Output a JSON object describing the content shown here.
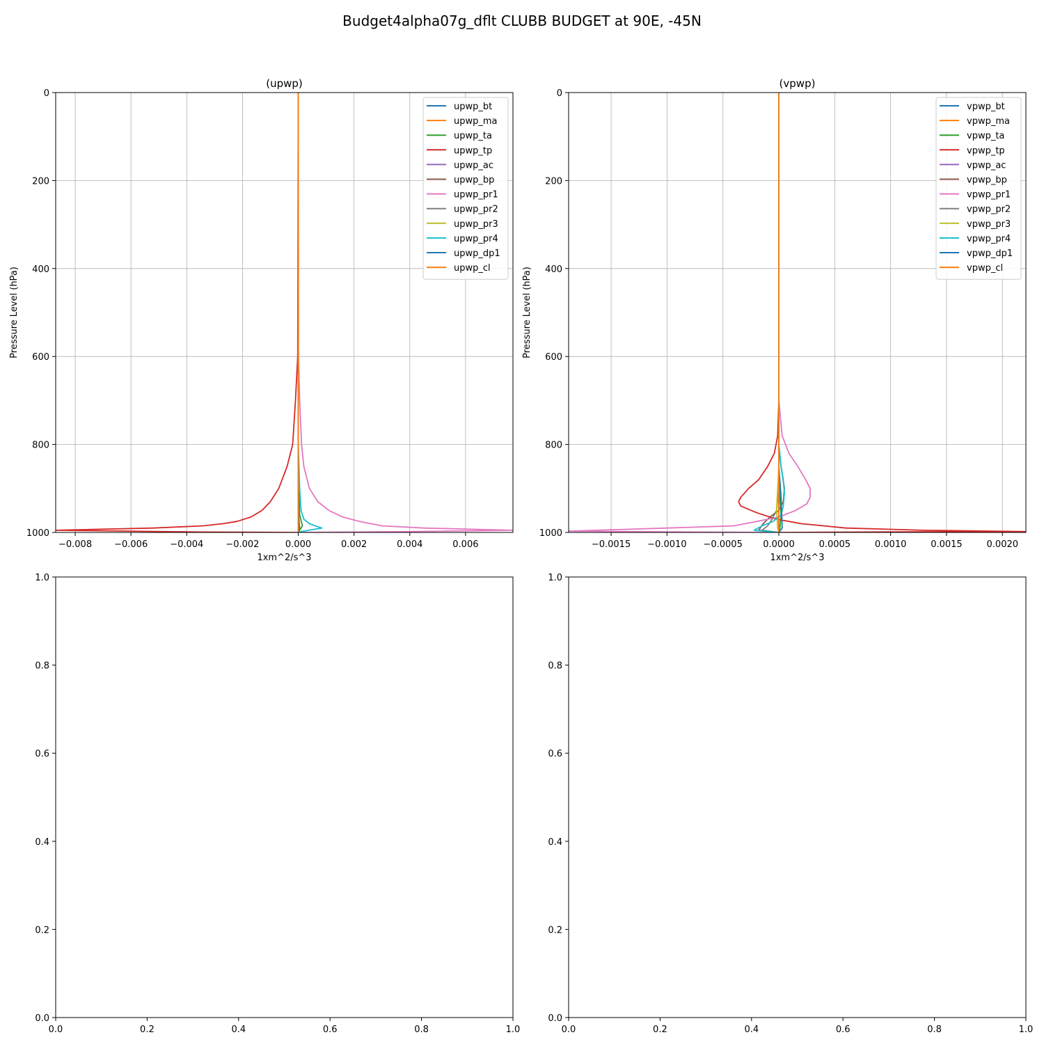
{
  "figure_title": "Budget4alpha07g_dflt CLUBB BUDGET at 90E, -45N",
  "chart_data": [
    {
      "type": "line",
      "title": "(upwp)",
      "xlabel": "1xm^2/s^3",
      "ylabel": "Pressure Level (hPa)",
      "xlim": [
        -0.0087,
        0.0077
      ],
      "ylim": [
        1000,
        0
      ],
      "y_inverted": true,
      "grid": true,
      "legend_position": "top-right",
      "xticks": [
        "−0.008",
        "−0.006",
        "−0.004",
        "−0.002",
        "0.000",
        "0.002",
        "0.004",
        "0.006"
      ],
      "xtick_values": [
        -0.008,
        -0.006,
        -0.004,
        -0.002,
        0,
        0.002,
        0.004,
        0.006
      ],
      "yticks": [
        "0",
        "200",
        "400",
        "600",
        "800",
        "1000"
      ],
      "ytick_values": [
        0,
        200,
        400,
        600,
        800,
        1000
      ],
      "series": [
        {
          "name": "upwp_bt",
          "color": "#1f77b4",
          "x": [
            0,
            0,
            0,
            0
          ],
          "y": [
            0,
            600,
            990,
            1000
          ]
        },
        {
          "name": "upwp_ma",
          "color": "#ff7f0e",
          "x": [
            0,
            0,
            0,
            0
          ],
          "y": [
            0,
            600,
            990,
            1000
          ]
        },
        {
          "name": "upwp_ta",
          "color": "#2ca02c",
          "x": [
            0,
            0,
            5e-05,
            0.00015,
            5e-05,
            0
          ],
          "y": [
            0,
            850,
            960,
            985,
            995,
            1000
          ]
        },
        {
          "name": "upwp_tp",
          "color": "#d62728",
          "x": [
            0,
            -2e-05,
            -0.0001,
            -0.0002,
            -0.0004,
            -0.0007,
            -0.001,
            -0.0013,
            -0.0017,
            -0.0022,
            -0.0027,
            -0.0034,
            -0.0052,
            -0.0087,
            -0.0035,
            0
          ],
          "y": [
            0,
            600,
            700,
            800,
            850,
            900,
            930,
            950,
            965,
            975,
            980,
            985,
            990,
            995,
            999,
            1000
          ]
        },
        {
          "name": "upwp_ac",
          "color": "#9467bd",
          "x": [
            0,
            0,
            0
          ],
          "y": [
            0,
            990,
            1000
          ]
        },
        {
          "name": "upwp_bp",
          "color": "#8c564b",
          "x": [
            0,
            0,
            5e-05,
            0
          ],
          "y": [
            0,
            950,
            990,
            1000
          ]
        },
        {
          "name": "upwp_pr1",
          "color": "#e377c2",
          "x": [
            0,
            1e-05,
            5e-05,
            0.00012,
            0.0002,
            0.0004,
            0.0007,
            0.0011,
            0.0016,
            0.0022,
            0.003,
            0.0045,
            0.0077,
            0.004,
            0
          ],
          "y": [
            0,
            600,
            700,
            800,
            850,
            900,
            930,
            950,
            965,
            975,
            985,
            990,
            995,
            998,
            1000
          ]
        },
        {
          "name": "upwp_pr2",
          "color": "#7f7f7f",
          "x": [
            0,
            0,
            0
          ],
          "y": [
            0,
            990,
            1000
          ]
        },
        {
          "name": "upwp_pr3",
          "color": "#bcbd22",
          "x": [
            0,
            0,
            0
          ],
          "y": [
            0,
            990,
            1000
          ]
        },
        {
          "name": "upwp_pr4",
          "color": "#17becf",
          "x": [
            0,
            0,
            5e-05,
            0.0001,
            0.0002,
            0.0004,
            0.0006,
            0.00085,
            0.0001,
            0
          ],
          "y": [
            0,
            800,
            900,
            950,
            970,
            980,
            985,
            990,
            998,
            1000
          ]
        },
        {
          "name": "upwp_dp1",
          "color": "#1f77b4",
          "x": [
            0,
            0,
            2e-05,
            0
          ],
          "y": [
            0,
            900,
            995,
            1000
          ]
        },
        {
          "name": "upwp_cl",
          "color": "#ff7f0e",
          "x": [
            0,
            0,
            0
          ],
          "y": [
            0,
            990,
            1000
          ]
        }
      ]
    },
    {
      "type": "line",
      "title": "(vpwp)",
      "xlabel": "1xm^2/s^3",
      "ylabel": "Pressure Level (hPa)",
      "xlim": [
        -0.00188,
        0.00221
      ],
      "ylim": [
        1000,
        0
      ],
      "y_inverted": true,
      "grid": true,
      "legend_position": "top-right",
      "xticks": [
        "−0.0015",
        "−0.0010",
        "−0.0005",
        "0.0000",
        "0.0005",
        "0.0010",
        "0.0015",
        "0.0020"
      ],
      "xtick_values": [
        -0.0015,
        -0.001,
        -0.0005,
        0,
        0.0005,
        0.001,
        0.0015,
        0.002
      ],
      "yticks": [
        "0",
        "200",
        "400",
        "600",
        "800",
        "1000"
      ],
      "ytick_values": [
        0,
        200,
        400,
        600,
        800,
        1000
      ],
      "series": [
        {
          "name": "vpwp_bt",
          "color": "#1f77b4",
          "x": [
            0,
            0,
            0,
            0
          ],
          "y": [
            0,
            600,
            990,
            1000
          ]
        },
        {
          "name": "vpwp_ma",
          "color": "#ff7f0e",
          "x": [
            0,
            0,
            0,
            0
          ],
          "y": [
            0,
            600,
            990,
            1000
          ]
        },
        {
          "name": "vpwp_ta",
          "color": "#2ca02c",
          "x": [
            0,
            0,
            1e-05,
            2e-05,
            1e-05,
            0
          ],
          "y": [
            0,
            850,
            920,
            960,
            990,
            1000
          ]
        },
        {
          "name": "vpwp_tp",
          "color": "#d62728",
          "x": [
            0,
            0,
            -1e-05,
            -4e-05,
            -0.0001,
            -0.00018,
            -0.00027,
            -0.00034,
            -0.00036,
            -0.00034,
            -0.0002,
            -2e-05,
            0.0002,
            0.0006,
            0.0013,
            0.00221,
            0.0008,
            0
          ],
          "y": [
            0,
            700,
            780,
            820,
            850,
            880,
            900,
            920,
            930,
            940,
            955,
            970,
            980,
            990,
            995,
            998,
            999,
            1000
          ]
        },
        {
          "name": "vpwp_ac",
          "color": "#9467bd",
          "x": [
            0,
            0,
            0
          ],
          "y": [
            0,
            990,
            1000
          ]
        },
        {
          "name": "vpwp_bp",
          "color": "#8c564b",
          "x": [
            0,
            0,
            2e-05,
            5e-05,
            4e-05,
            0,
            -8e-05,
            -0.00014,
            -0.00018,
            0
          ],
          "y": [
            0,
            800,
            850,
            900,
            930,
            950,
            965,
            980,
            995,
            1000
          ]
        },
        {
          "name": "vpwp_pr1",
          "color": "#e377c2",
          "x": [
            0,
            0,
            3e-05,
            9e-05,
            0.00017,
            0.00024,
            0.00028,
            0.00028,
            0.00025,
            0.00015,
            0,
            -0.0002,
            -0.0004,
            -0.001,
            -0.00188,
            -0.0008,
            0
          ],
          "y": [
            0,
            700,
            780,
            820,
            850,
            880,
            900,
            920,
            935,
            950,
            965,
            975,
            985,
            990,
            997,
            999,
            1000
          ]
        },
        {
          "name": "vpwp_pr2",
          "color": "#7f7f7f",
          "x": [
            0,
            0,
            -2e-05,
            -6e-05,
            -0.0001,
            -0.00015,
            0
          ],
          "y": [
            0,
            900,
            950,
            970,
            985,
            995,
            1000
          ]
        },
        {
          "name": "vpwp_pr3",
          "color": "#bcbd22",
          "x": [
            0,
            0,
            -2e-05,
            -1e-05,
            0
          ],
          "y": [
            0,
            850,
            950,
            990,
            1000
          ]
        },
        {
          "name": "vpwp_pr4",
          "color": "#17becf",
          "x": [
            0,
            0,
            2e-05,
            4e-05,
            5e-05,
            4e-05,
            2e-05,
            -5e-05,
            -0.00015,
            -0.00022,
            0
          ],
          "y": [
            0,
            800,
            850,
            880,
            910,
            940,
            960,
            975,
            985,
            995,
            1000
          ]
        },
        {
          "name": "vpwp_dp1",
          "color": "#1f77b4",
          "x": [
            0,
            0,
            2e-05,
            3e-05,
            0
          ],
          "y": [
            0,
            850,
            920,
            990,
            1000
          ]
        },
        {
          "name": "vpwp_cl",
          "color": "#ff7f0e",
          "x": [
            0,
            0,
            0
          ],
          "y": [
            0,
            990,
            1000
          ]
        }
      ]
    },
    {
      "type": "line",
      "title": "",
      "xlabel": "",
      "ylabel": "",
      "xlim": [
        0,
        1
      ],
      "ylim": [
        0,
        1
      ],
      "y_inverted": false,
      "grid": false,
      "xticks": [
        "0.0",
        "0.2",
        "0.4",
        "0.6",
        "0.8",
        "1.0"
      ],
      "xtick_values": [
        0,
        0.2,
        0.4,
        0.6,
        0.8,
        1.0
      ],
      "yticks": [
        "0.0",
        "0.2",
        "0.4",
        "0.6",
        "0.8",
        "1.0"
      ],
      "ytick_values": [
        0,
        0.2,
        0.4,
        0.6,
        0.8,
        1.0
      ],
      "series": []
    },
    {
      "type": "line",
      "title": "",
      "xlabel": "",
      "ylabel": "",
      "xlim": [
        0,
        1
      ],
      "ylim": [
        0,
        1
      ],
      "y_inverted": false,
      "grid": false,
      "xticks": [
        "0.0",
        "0.2",
        "0.4",
        "0.6",
        "0.8",
        "1.0"
      ],
      "xtick_values": [
        0,
        0.2,
        0.4,
        0.6,
        0.8,
        1.0
      ],
      "yticks": [
        "0.0",
        "0.2",
        "0.4",
        "0.6",
        "0.8",
        "1.0"
      ],
      "ytick_values": [
        0,
        0.2,
        0.4,
        0.6,
        0.8,
        1.0
      ],
      "series": []
    }
  ]
}
